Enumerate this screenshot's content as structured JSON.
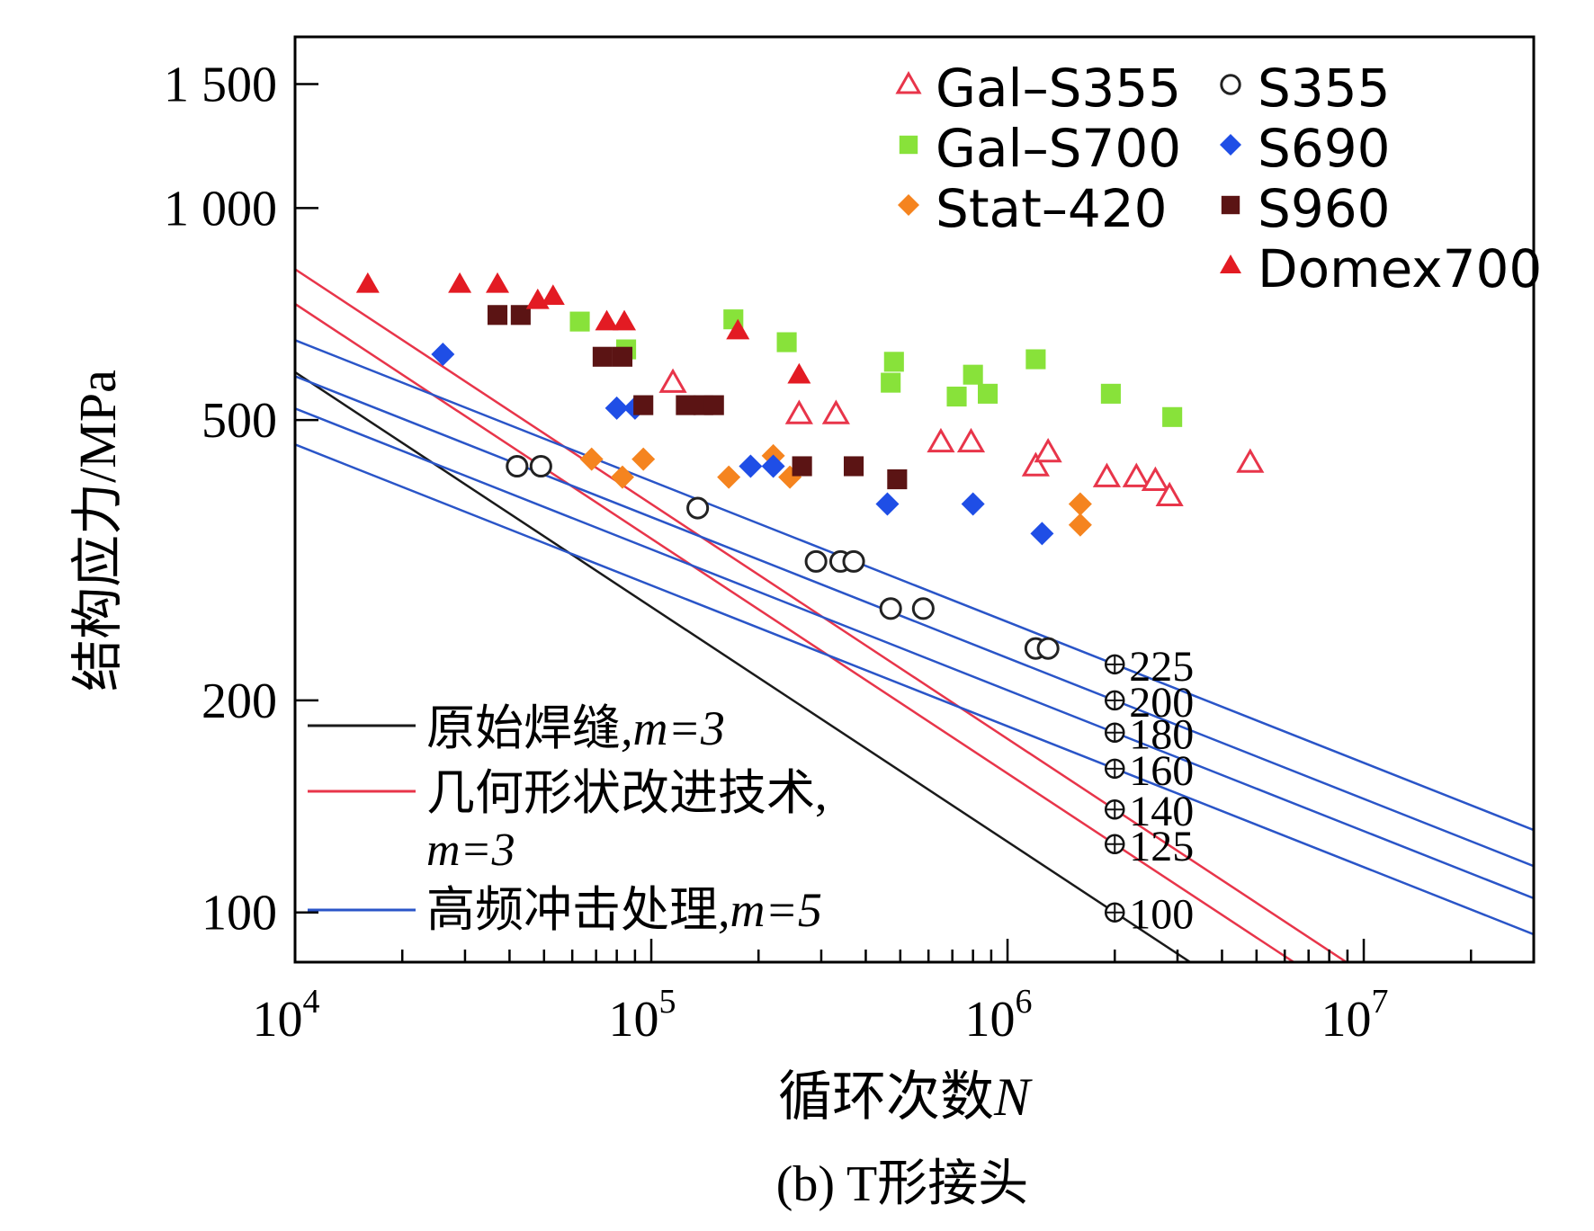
{
  "chart_data": {
    "type": "scatter",
    "subtitle": "(b) T形接头",
    "xlabel_text": "循环次数",
    "xlabel_var": "N",
    "ylabel": "结构应力/MPa",
    "x_scale": "log",
    "y_scale": "log",
    "xlim": [
      10000,
      30000000
    ],
    "ylim": [
      85,
      1750
    ],
    "x_ticks": [
      {
        "value": 10000,
        "base": "10",
        "exp": "4"
      },
      {
        "value": 100000,
        "base": "10",
        "exp": "5"
      },
      {
        "value": 1000000,
        "base": "10",
        "exp": "6"
      },
      {
        "value": 10000000,
        "base": "10",
        "exp": "7"
      }
    ],
    "y_ticks": [
      {
        "value": 100,
        "label": "100"
      },
      {
        "value": 200,
        "label": "200"
      },
      {
        "value": 500,
        "label": "500"
      },
      {
        "value": 1000,
        "label": "1 000"
      },
      {
        "value": 1500,
        "label": "1 500"
      }
    ],
    "grid": false,
    "legend_position": "top-right",
    "series": [
      {
        "name": "Gal–S355",
        "marker": "triangle-open",
        "color": "#e8354a",
        "points": [
          [
            115000,
            565
          ],
          [
            260000,
            510
          ],
          [
            330000,
            510
          ],
          [
            650000,
            465
          ],
          [
            790000,
            465
          ],
          [
            1200000,
            430
          ],
          [
            1300000,
            450
          ],
          [
            1900000,
            415
          ],
          [
            2300000,
            415
          ],
          [
            2600000,
            410
          ],
          [
            2850000,
            390
          ],
          [
            4800000,
            435
          ]
        ]
      },
      {
        "name": "Gal–S700",
        "marker": "square",
        "color": "#88e23a",
        "points": [
          [
            63000,
            690
          ],
          [
            85000,
            630
          ],
          [
            170000,
            695
          ],
          [
            240000,
            645
          ],
          [
            470000,
            565
          ],
          [
            480000,
            605
          ],
          [
            720000,
            540
          ],
          [
            800000,
            580
          ],
          [
            880000,
            545
          ],
          [
            1200000,
            610
          ],
          [
            1950000,
            545
          ],
          [
            2900000,
            505
          ]
        ]
      },
      {
        "name": "Stat–420",
        "marker": "diamond",
        "color": "#f5841f",
        "points": [
          [
            68000,
            440
          ],
          [
            83000,
            415
          ],
          [
            95000,
            440
          ],
          [
            165000,
            415
          ],
          [
            220000,
            445
          ],
          [
            245000,
            415
          ],
          [
            1600000,
            380
          ],
          [
            1600000,
            355
          ]
        ]
      },
      {
        "name": "S355",
        "marker": "circle-open",
        "color": "#222222",
        "points": [
          [
            42000,
            430
          ],
          [
            49000,
            430
          ],
          [
            135000,
            375
          ],
          [
            290000,
            315
          ],
          [
            340000,
            315
          ],
          [
            370000,
            315
          ],
          [
            470000,
            270
          ],
          [
            580000,
            270
          ],
          [
            1200000,
            237
          ],
          [
            1300000,
            237
          ]
        ]
      },
      {
        "name": "S690",
        "marker": "diamond",
        "color": "#1f4ee6",
        "points": [
          [
            26000,
            620
          ],
          [
            80000,
            520
          ],
          [
            90000,
            520
          ],
          [
            190000,
            430
          ],
          [
            220000,
            430
          ],
          [
            460000,
            380
          ],
          [
            800000,
            380
          ],
          [
            1250000,
            345
          ]
        ]
      },
      {
        "name": "S960",
        "marker": "square",
        "color": "#5b1414",
        "points": [
          [
            37000,
            705
          ],
          [
            43000,
            705
          ],
          [
            73000,
            615
          ],
          [
            83000,
            615
          ],
          [
            95000,
            525
          ],
          [
            125000,
            525
          ],
          [
            140000,
            525
          ],
          [
            150000,
            525
          ],
          [
            265000,
            430
          ],
          [
            370000,
            430
          ],
          [
            490000,
            412
          ]
        ]
      },
      {
        "name": "Domex700",
        "marker": "triangle",
        "color": "#e31b23",
        "points": [
          [
            16000,
            780
          ],
          [
            29000,
            780
          ],
          [
            37000,
            780
          ],
          [
            48000,
            740
          ],
          [
            53000,
            750
          ],
          [
            75000,
            690
          ],
          [
            84000,
            690
          ],
          [
            175000,
            670
          ],
          [
            260000,
            580
          ]
        ]
      }
    ],
    "lines": [
      {
        "name": "原始焊缝",
        "param": ",m=3",
        "color": "#1a1a1a",
        "slope_m": 3,
        "fat_at_2e6": 100
      },
      {
        "name": "几何形状改进技术",
        "param": ",m=3",
        "color": "#e8354a",
        "slope_m": 3,
        "fat_at_2e6": [
          125,
          140
        ]
      },
      {
        "name": "高频冲击处理",
        "param": ",m=5",
        "color": "#2a55c8",
        "slope_m": 5,
        "fat_at_2e6": [
          160,
          180,
          200,
          225
        ]
      }
    ],
    "fat_labels": [
      "225",
      "200",
      "180",
      "160",
      "140",
      "125",
      "100"
    ],
    "fat_values": [
      225,
      200,
      180,
      160,
      140,
      125,
      100
    ],
    "fat_marker_x": 2000000
  },
  "legend_lines": {
    "l1": "原始焊缝",
    "l1_param": ",m=3",
    "l2": "几何形状改进技术,",
    "l2_param": "m=3",
    "l3": "高频冲击处理",
    "l3_param": ",m=5"
  }
}
